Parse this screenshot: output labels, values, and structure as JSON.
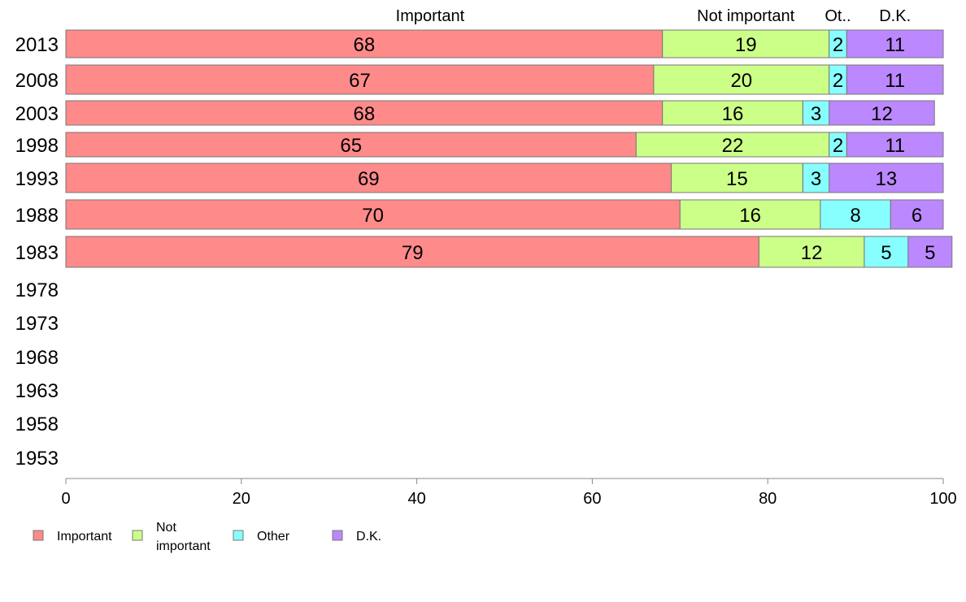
{
  "chart_data": {
    "type": "bar",
    "orientation": "horizontal",
    "stacked": true,
    "categories": [
      "2013",
      "2008",
      "2003",
      "1998",
      "1993",
      "1988",
      "1983",
      "1978",
      "1973",
      "1968",
      "1963",
      "1958",
      "1953"
    ],
    "series": [
      {
        "name": "Important",
        "header_label": "Important",
        "legend_label": "Important",
        "color": "#ff8a8a",
        "values": [
          68,
          67,
          68,
          65,
          69,
          70,
          79,
          null,
          null,
          null,
          null,
          null,
          null
        ]
      },
      {
        "name": "Not important",
        "header_label": "Not important",
        "legend_label": [
          "Not",
          "important"
        ],
        "color": "#ccff88",
        "values": [
          19,
          20,
          16,
          22,
          15,
          16,
          12,
          null,
          null,
          null,
          null,
          null,
          null
        ]
      },
      {
        "name": "Other",
        "header_label": "Ot..",
        "legend_label": "Other",
        "color": "#88ffff",
        "values": [
          2,
          2,
          3,
          2,
          3,
          8,
          5,
          null,
          null,
          null,
          null,
          null,
          null
        ]
      },
      {
        "name": "D.K.",
        "header_label": "D.K.",
        "legend_label": "D.K.",
        "color": "#bb88ff",
        "values": [
          11,
          11,
          12,
          11,
          13,
          6,
          5,
          null,
          null,
          null,
          null,
          null,
          null
        ]
      }
    ],
    "xlim": [
      0,
      100
    ],
    "xticks": [
      0,
      20,
      40,
      60,
      80,
      100
    ],
    "xlabel": "",
    "ylabel": "",
    "title": "",
    "grid": false,
    "legend_position": "bottom-left"
  }
}
